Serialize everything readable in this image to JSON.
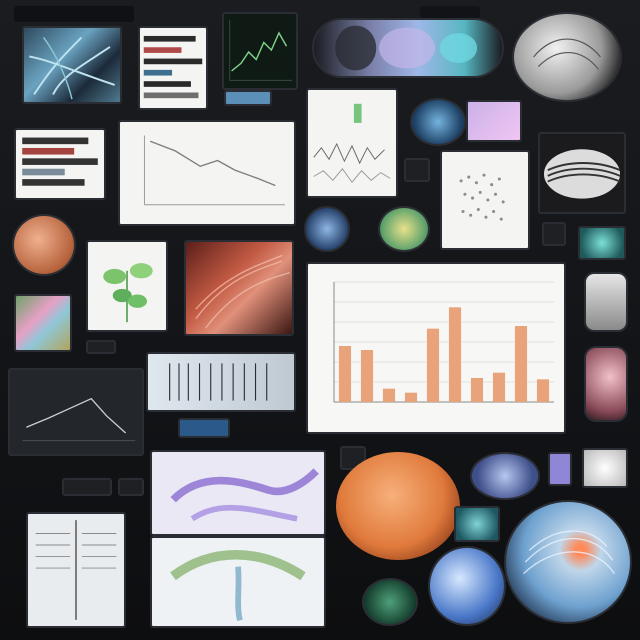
{
  "colors": {
    "background": "#111214",
    "bar_fill": "#e9a37a",
    "accent_blue": "#3b6ea8",
    "tissue_orange": "#e07a3c",
    "tissue_purple": "#8a6bd1"
  },
  "chart_data": {
    "type": "bar",
    "categories": [
      "",
      "",
      "",
      "",
      "",
      "",
      "",
      "",
      "",
      ""
    ],
    "values": [
      42,
      39,
      10,
      7,
      55,
      71,
      18,
      22,
      57,
      17
    ],
    "title": "",
    "xlabel": "",
    "ylabel": "",
    "ylim": [
      0,
      90
    ],
    "grid": true
  }
}
